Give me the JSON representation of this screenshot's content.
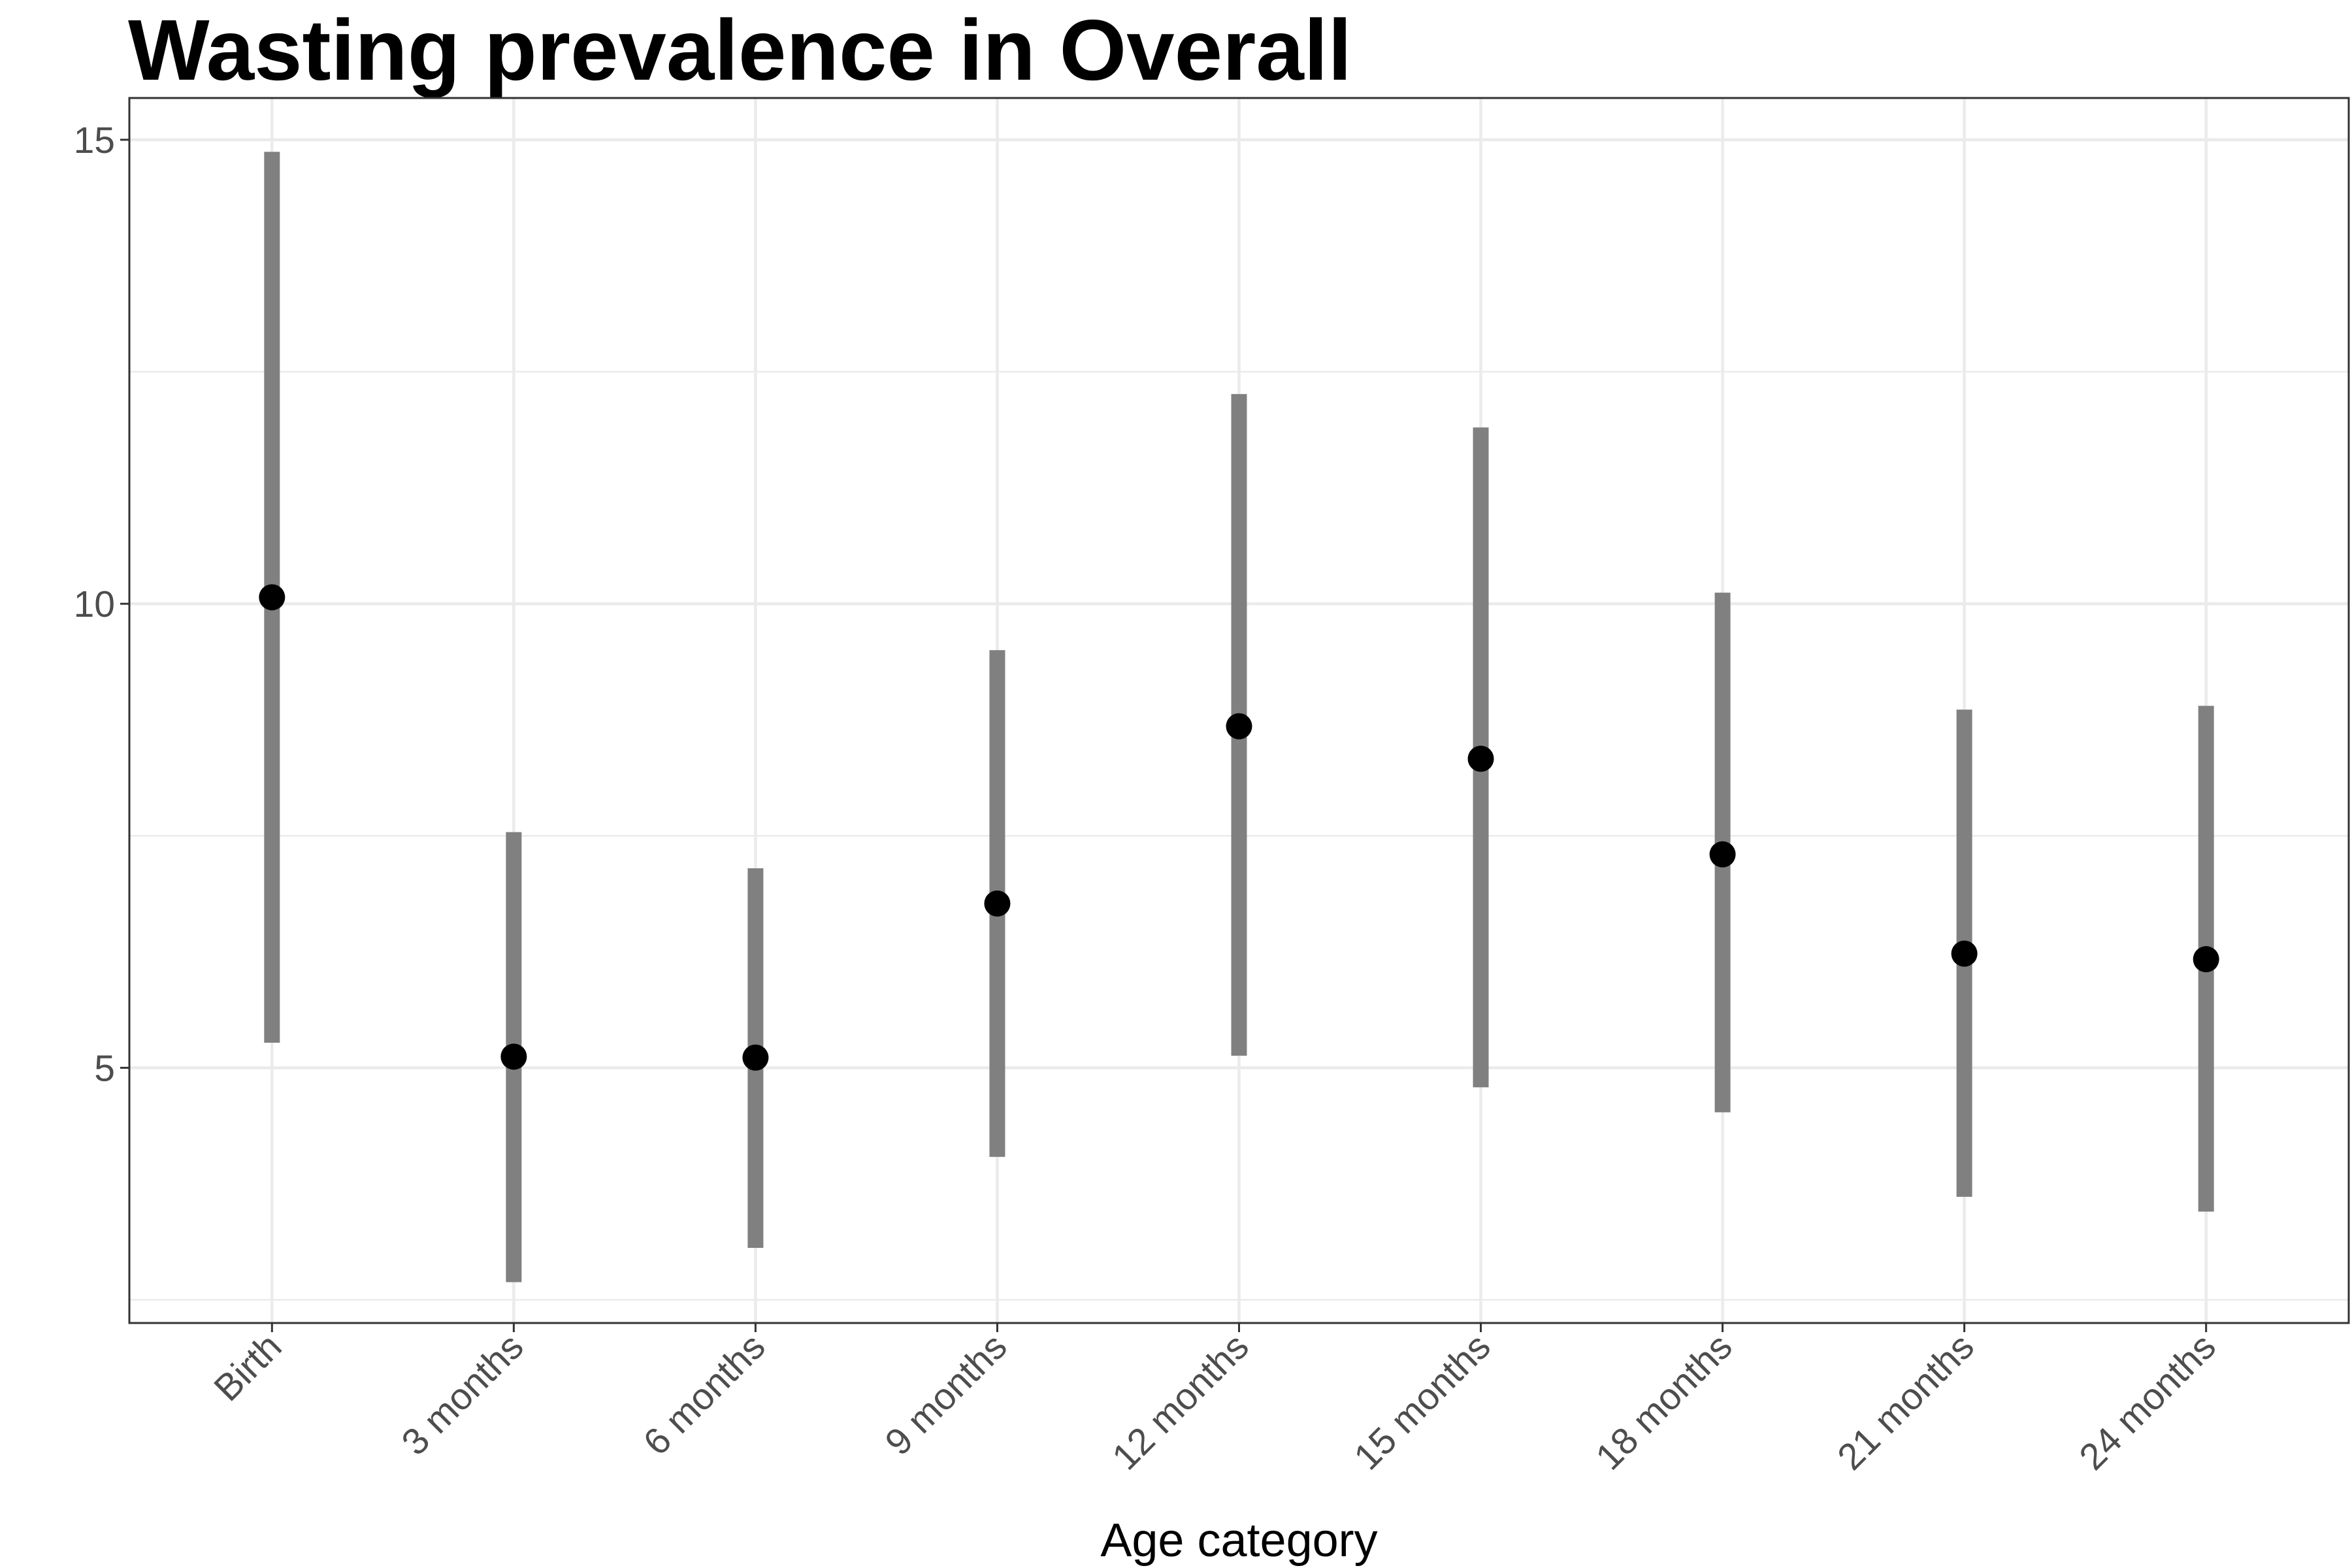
{
  "chart_data": {
    "type": "scatter",
    "title": "Wasting prevalence in Overall",
    "xlabel": "Age category",
    "ylabel": "",
    "categories": [
      "Birth",
      "3 months",
      "6 months",
      "9 months",
      "12 months",
      "15 months",
      "18 months",
      "21 months",
      "24 months"
    ],
    "estimate": [
      10.07,
      5.12,
      5.11,
      6.77,
      8.68,
      8.33,
      7.3,
      6.23,
      6.17
    ],
    "lower": [
      5.27,
      2.69,
      3.06,
      4.04,
      5.13,
      4.79,
      4.52,
      3.61,
      3.45
    ],
    "upper": [
      14.87,
      7.54,
      7.15,
      9.5,
      12.26,
      11.9,
      10.12,
      8.86,
      8.9
    ],
    "yticks": [
      5,
      10,
      15
    ],
    "ylim": [
      2.25,
      15.45
    ],
    "grid": true,
    "colors": {
      "point": "#000000",
      "interval": "#808080",
      "grid": "#ebebeb",
      "panel_border": "#333333"
    }
  }
}
